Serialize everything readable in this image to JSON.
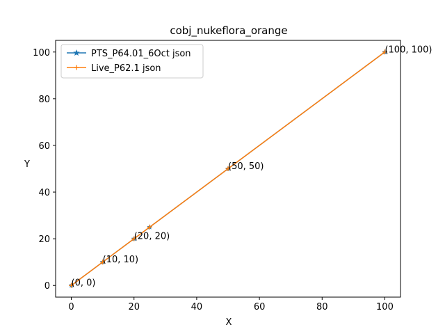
{
  "chart_data": {
    "type": "line",
    "title": "cobj_nukeflora_orange",
    "xlabel": "X",
    "ylabel": "Y",
    "xlim": [
      -5,
      105
    ],
    "ylim": [
      -5,
      105
    ],
    "xticks": [
      0,
      20,
      40,
      60,
      80,
      100
    ],
    "yticks": [
      0,
      20,
      40,
      60,
      80,
      100
    ],
    "grid": false,
    "legend_position": "top-left",
    "series": [
      {
        "name": "PTS_P64.01_6Oct json",
        "color": "#1f77b4",
        "marker": "star",
        "x": [
          0,
          10,
          20,
          25,
          50,
          100
        ],
        "y": [
          0,
          10,
          20,
          25,
          50,
          100
        ]
      },
      {
        "name": "Live_P62.1 json",
        "color": "#ff7f0e",
        "marker": "plus",
        "x": [
          0,
          10,
          20,
          25,
          50,
          100
        ],
        "y": [
          0,
          10,
          20,
          25,
          50,
          100
        ]
      }
    ],
    "annotations": [
      {
        "x": 0,
        "y": 0,
        "text": "(0, 0)"
      },
      {
        "x": 10,
        "y": 10,
        "text": "(10, 10)"
      },
      {
        "x": 20,
        "y": 20,
        "text": "(20, 20)"
      },
      {
        "x": 50,
        "y": 50,
        "text": "(50, 50)"
      },
      {
        "x": 100,
        "y": 100,
        "text": "(100, 100)"
      }
    ]
  }
}
